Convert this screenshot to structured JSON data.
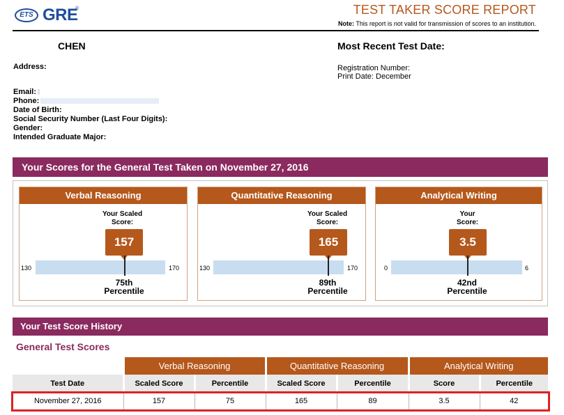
{
  "header": {
    "ets_logo": "ETS",
    "gre_logo": "GRE",
    "gre_mark": "®",
    "title": "TEST TAKER SCORE REPORT",
    "note_label": "Note:",
    "note_text": " This report is not valid for transmission of scores to an institution."
  },
  "candidate": {
    "name": "CHEN",
    "recent_date_label": "Most Recent Test Date:",
    "address_label": "Address:",
    "registration_label": "Registration Number:",
    "print_date_label": "Print Date: December",
    "email_label": "Email:",
    "phone_label": "Phone:",
    "dob_label": "Date of Birth:",
    "ssn_label": "Social Security Number (Last Four Digits):",
    "gender_label": "Gender:",
    "major_label": "Intended Graduate Major:"
  },
  "scores_section": {
    "title": "Your Scores for the General Test Taken on November 27, 2016",
    "sections": [
      {
        "name": "Verbal Reasoning",
        "score_label_1": "Your Scaled",
        "score_label_2": "Score:",
        "score": "157",
        "min": "130",
        "max": "170",
        "percentile": "75th",
        "percentile_label": "Percentile",
        "fraction": 0.675
      },
      {
        "name": "Quantitative Reasoning",
        "score_label_1": "Your Scaled",
        "score_label_2": "Score:",
        "score": "165",
        "min": "130",
        "max": "170",
        "percentile": "89th",
        "percentile_label": "Percentile",
        "fraction": 0.875
      },
      {
        "name": "Analytical Writing",
        "score_label_1": "Your",
        "score_label_2": "Score:",
        "score": "3.5",
        "min": "0",
        "max": "6",
        "percentile": "42nd",
        "percentile_label": "Percentile",
        "fraction": 0.583
      }
    ]
  },
  "history": {
    "title": "Your Test Score History",
    "subtitle": "General Test Scores",
    "groups": [
      "Verbal Reasoning",
      "Quantitative Reasoning",
      "Analytical Writing"
    ],
    "columns": [
      "Test Date",
      "Scaled Score",
      "Percentile",
      "Scaled Score",
      "Percentile",
      "Score",
      "Percentile"
    ],
    "rows": [
      [
        "November 27, 2016",
        "157",
        "75",
        "165",
        "89",
        "3.5",
        "42"
      ]
    ]
  },
  "colors": {
    "brand_blue": "#1f4e9b",
    "section_orange": "#b5581c",
    "band_purple": "#8a2a5e",
    "bar_blue": "#c8ddf0",
    "highlight_red": "#e02020"
  }
}
